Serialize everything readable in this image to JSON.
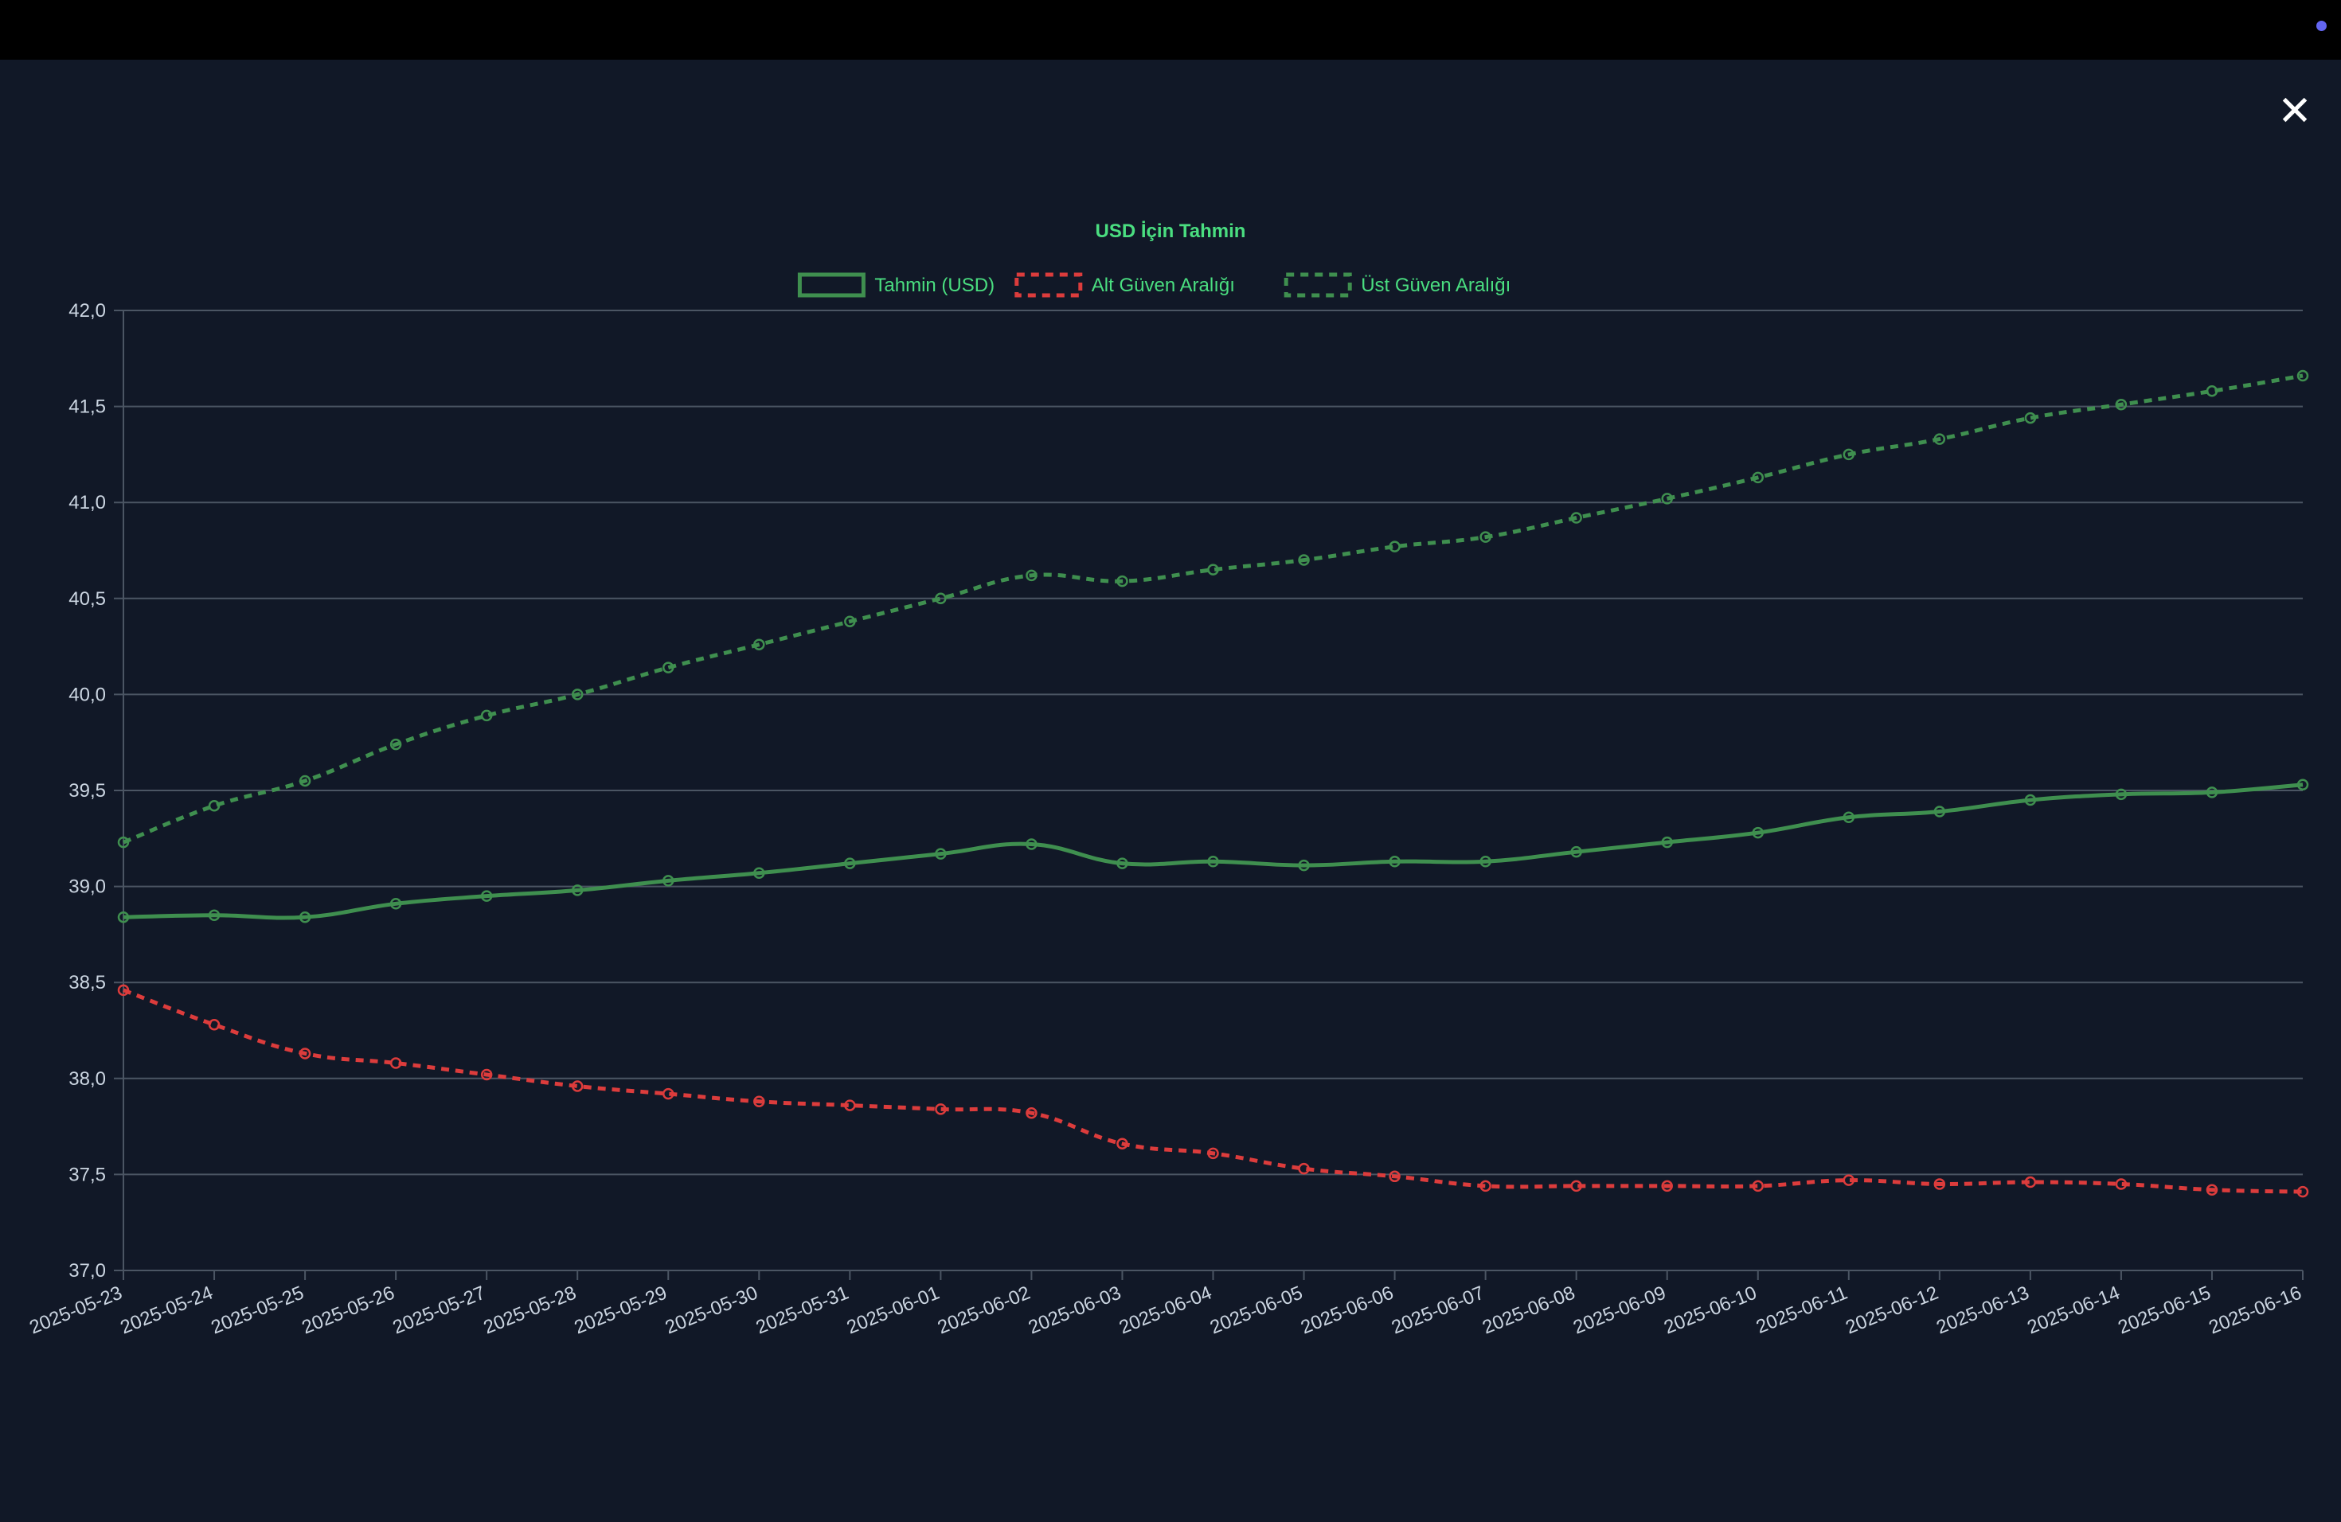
{
  "modal": {
    "close_label": "✕"
  },
  "colors": {
    "background": "#111827",
    "topbar": "#000000",
    "accent_dot": "#6366f1",
    "grid": "#4b5563",
    "tick_text": "#cbd5e1",
    "title_text": "#4ade80"
  },
  "chart_data": {
    "type": "line",
    "title": "USD İçin Tahmin",
    "xlabel": "",
    "ylabel": "",
    "ylim": [
      37.0,
      42.0
    ],
    "yticks": [
      "37,0",
      "37,5",
      "38,0",
      "38,5",
      "39,0",
      "39,5",
      "40,0",
      "40,5",
      "41,0",
      "41,5",
      "42,0"
    ],
    "grid": true,
    "legend_position": "top-center",
    "x": [
      "2025-05-23",
      "2025-05-24",
      "2025-05-25",
      "2025-05-26",
      "2025-05-27",
      "2025-05-28",
      "2025-05-29",
      "2025-05-30",
      "2025-05-31",
      "2025-06-01",
      "2025-06-02",
      "2025-06-03",
      "2025-06-04",
      "2025-06-05",
      "2025-06-06",
      "2025-06-07",
      "2025-06-08",
      "2025-06-09",
      "2025-06-10",
      "2025-06-11",
      "2025-06-12",
      "2025-06-13",
      "2025-06-14",
      "2025-06-15",
      "2025-06-16"
    ],
    "series": [
      {
        "name": "Tahmin (USD)",
        "color": "#3f8f4f",
        "dashed": false,
        "values": [
          38.84,
          38.85,
          38.84,
          38.91,
          38.95,
          38.98,
          39.03,
          39.07,
          39.12,
          39.17,
          39.22,
          39.12,
          39.13,
          39.11,
          39.13,
          39.13,
          39.18,
          39.23,
          39.28,
          39.36,
          39.39,
          39.45,
          39.48,
          39.49,
          39.53
        ]
      },
      {
        "name": "Alt Güven Aralığı",
        "color": "#dc3c3c",
        "dashed": true,
        "values": [
          38.46,
          38.28,
          38.13,
          38.08,
          38.02,
          37.96,
          37.92,
          37.88,
          37.86,
          37.84,
          37.82,
          37.66,
          37.61,
          37.53,
          37.49,
          37.44,
          37.44,
          37.44,
          37.44,
          37.47,
          37.45,
          37.46,
          37.45,
          37.42,
          37.41
        ]
      },
      {
        "name": "Üst Güven Aralığı",
        "color": "#3f8f4f",
        "dashed": true,
        "values": [
          39.23,
          39.42,
          39.55,
          39.74,
          39.89,
          40.0,
          40.14,
          40.26,
          40.38,
          40.5,
          40.62,
          40.59,
          40.65,
          40.7,
          40.77,
          40.82,
          40.92,
          41.02,
          41.13,
          41.25,
          41.33,
          41.44,
          41.51,
          41.58,
          41.66
        ]
      }
    ]
  }
}
